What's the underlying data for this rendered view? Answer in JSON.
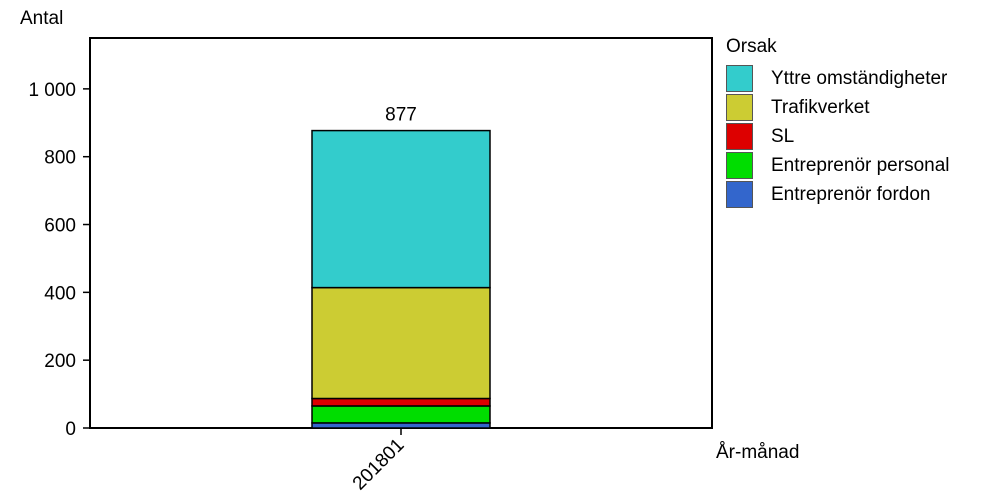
{
  "chart_data": {
    "type": "bar",
    "stacked": true,
    "title": "",
    "ylabel": "Antal",
    "xlabel": "År-månad",
    "ylim": [
      0,
      1150
    ],
    "yticks": [
      0,
      200,
      400,
      600,
      800,
      1000
    ],
    "ytick_labels": [
      "0",
      "200",
      "400",
      "600",
      "800",
      "1 000"
    ],
    "categories": [
      "201801"
    ],
    "total_labels": [
      "877"
    ],
    "legend_title": "Orsak",
    "legend_position": "right",
    "series": [
      {
        "name": "Entreprenör fordon",
        "values": [
          15
        ],
        "color": "#3366cc"
      },
      {
        "name": "Entreprenör personal",
        "values": [
          50
        ],
        "color": "#00dd00"
      },
      {
        "name": "SL",
        "values": [
          22
        ],
        "color": "#dd0000"
      },
      {
        "name": "Trafikverket",
        "values": [
          327
        ],
        "color": "#cccc33"
      },
      {
        "name": "Yttre omständigheter",
        "values": [
          463
        ],
        "color": "#33cccc"
      }
    ]
  }
}
